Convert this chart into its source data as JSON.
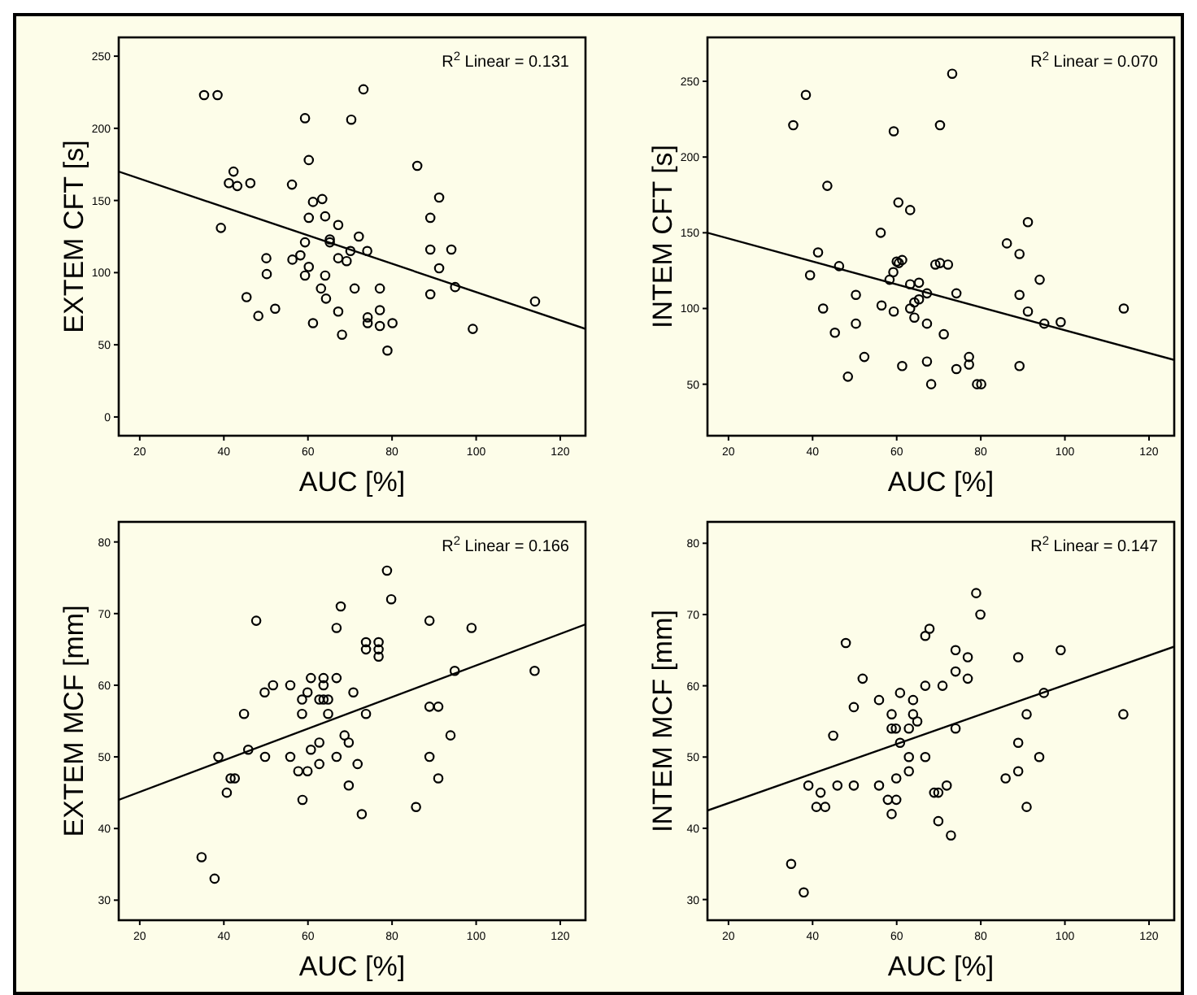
{
  "chart_data": [
    {
      "type": "scatter",
      "xlabel": "AUC [%]",
      "ylabel": "EXTEM CFT [s]",
      "xlim": [
        15,
        126
      ],
      "ylim": [
        -13,
        263
      ],
      "xticks": [
        20,
        40,
        60,
        80,
        100,
        120
      ],
      "yticks": [
        0,
        50,
        100,
        150,
        200,
        250
      ],
      "marker": "circle",
      "annotations": [
        "R$^{2}$ Linear = 0.131"
      ],
      "series": [
        {
          "color": "#000000",
          "x": [
            35.3,
            38.5,
            39.3,
            41.2,
            42.3,
            43.2,
            46.3,
            45.4,
            48.2,
            50.1,
            50.2,
            52.2,
            56.2,
            56.3,
            58.2,
            59.3,
            59.3,
            59.3,
            60.2,
            60.2,
            60.2,
            61.2,
            61.2,
            63.4,
            63.1,
            64.1,
            64.1,
            64.3,
            65.2,
            65.2,
            67.2,
            67.2,
            67.2,
            68.1,
            69.2,
            70.1,
            70.3,
            71.1,
            72.1,
            73.2,
            74.1,
            74.2,
            74.2,
            77.1,
            77.1,
            77.1,
            78.9,
            80.1,
            86.0,
            89.1,
            89.1,
            89.1,
            91.2,
            91.2,
            94.1,
            95.0,
            99.2,
            114.0
          ],
          "values": [
            223,
            223,
            131,
            162,
            170,
            160,
            162,
            83,
            70,
            110,
            99,
            75,
            161,
            109,
            112,
            121,
            98,
            207,
            178,
            138,
            104,
            65,
            149,
            151,
            89,
            139,
            98,
            82,
            123,
            121,
            133,
            110,
            73,
            57,
            108,
            115,
            206,
            89,
            125,
            227,
            115,
            69,
            65,
            89,
            74,
            63,
            46,
            65,
            174,
            138,
            116,
            85,
            152,
            103,
            116,
            90,
            61,
            80
          ]
        },
        {
          "type": "line",
          "color": "#000000",
          "marker": "none",
          "x": [
            15,
            126
          ],
          "values": [
            170,
            61
          ]
        }
      ]
    },
    {
      "type": "scatter",
      "xlabel": "AUC [%]",
      "ylabel": "INTEM CFT [s]",
      "xlim": [
        15,
        126
      ],
      "ylim": [
        16,
        279
      ],
      "xticks": [
        20,
        40,
        60,
        80,
        100,
        120
      ],
      "yticks": [
        50,
        100,
        150,
        200,
        250
      ],
      "marker": "circle",
      "annotations": [
        "R$^{2}$ Linear = 0.070"
      ],
      "series": [
        {
          "color": "#000000",
          "x": [
            35.4,
            38.4,
            39.4,
            41.3,
            42.5,
            43.5,
            45.3,
            46.3,
            48.4,
            50.3,
            50.3,
            52.3,
            56.2,
            56.4,
            58.3,
            59.2,
            59.3,
            59.3,
            60.0,
            60.4,
            60.5,
            61.3,
            61.3,
            63.2,
            63.2,
            63.2,
            64.2,
            64.2,
            65.3,
            65.3,
            67.2,
            67.2,
            67.2,
            68.2,
            69.2,
            70.3,
            70.3,
            71.2,
            72.2,
            73.2,
            74.2,
            74.2,
            77.2,
            77.2,
            79.1,
            80.1,
            86.2,
            89.2,
            89.2,
            89.2,
            91.2,
            91.2,
            94.0,
            95.1,
            99.0,
            114.0
          ],
          "values": [
            221,
            241,
            122,
            137,
            100,
            181,
            84,
            128,
            55,
            109,
            90,
            68,
            150,
            102,
            119,
            124,
            217,
            98,
            131,
            170,
            130,
            132,
            62,
            165,
            116,
            100,
            104,
            94,
            117,
            106,
            110,
            90,
            65,
            50,
            129,
            221,
            130,
            83,
            129,
            255,
            110,
            60,
            68,
            63,
            50,
            50,
            143,
            136,
            109,
            62,
            157,
            98,
            119,
            90,
            91,
            100
          ]
        },
        {
          "type": "line",
          "color": "#000000",
          "marker": "none",
          "x": [
            15,
            126
          ],
          "values": [
            150,
            66
          ]
        }
      ]
    },
    {
      "type": "scatter",
      "xlabel": "AUC [%]",
      "ylabel": "EXTEM MCF [mm]",
      "xlim": [
        15,
        126
      ],
      "ylim": [
        27.2,
        82.8
      ],
      "xticks": [
        20,
        40,
        60,
        80,
        100,
        120
      ],
      "yticks": [
        30,
        40,
        50,
        60,
        70,
        80
      ],
      "marker": "circle",
      "annotations": [
        "R$^{2}$ Linear = 0.166"
      ],
      "series": [
        {
          "color": "#000000",
          "x": [
            34.7,
            37.8,
            38.7,
            40.7,
            41.6,
            42.6,
            44.8,
            45.8,
            47.7,
            49.7,
            49.8,
            51.7,
            55.8,
            55.8,
            57.7,
            58.6,
            58.6,
            58.7,
            59.9,
            59.9,
            60.7,
            60.7,
            62.7,
            62.7,
            62.7,
            63.7,
            63.7,
            63.7,
            64.8,
            64.8,
            66.8,
            66.8,
            66.8,
            67.8,
            68.7,
            69.7,
            69.7,
            70.8,
            71.8,
            72.8,
            73.8,
            73.8,
            73.8,
            76.8,
            76.8,
            76.8,
            78.8,
            79.8,
            85.7,
            88.9,
            88.9,
            88.9,
            91.0,
            91.0,
            93.9,
            94.9,
            98.9,
            113.9
          ],
          "values": [
            36,
            33,
            50,
            45,
            47,
            47,
            56,
            51,
            69,
            59,
            50,
            60,
            60,
            50,
            48,
            58,
            56,
            44,
            59,
            48,
            61,
            51,
            58,
            49,
            52,
            61,
            60,
            58,
            58,
            56,
            68,
            61,
            50,
            71,
            53,
            52,
            46,
            59,
            49,
            42,
            56,
            66,
            65,
            66,
            65,
            64,
            76,
            72,
            43,
            69,
            57,
            50,
            57,
            47,
            53,
            62,
            68,
            62
          ]
        },
        {
          "type": "line",
          "color": "#000000",
          "marker": "none",
          "x": [
            15,
            126
          ],
          "values": [
            44,
            68.5
          ]
        }
      ]
    },
    {
      "type": "scatter",
      "xlabel": "AUC [%]",
      "ylabel": "INTEM MCF [mm]",
      "xlim": [
        15,
        126
      ],
      "ylim": [
        27.1,
        83
      ],
      "xticks": [
        20,
        40,
        60,
        80,
        100,
        120
      ],
      "yticks": [
        30,
        40,
        50,
        60,
        70,
        80
      ],
      "marker": "circle",
      "annotations": [
        "R$^{2}$ Linear = 0.147"
      ],
      "series": [
        {
          "color": "#000000",
          "x": [
            34.9,
            37.9,
            39.0,
            40.9,
            41.9,
            43.0,
            44.9,
            45.9,
            47.9,
            49.8,
            49.8,
            51.9,
            55.8,
            55.8,
            57.9,
            58.8,
            58.8,
            58.8,
            59.8,
            59.9,
            59.9,
            60.8,
            60.8,
            62.9,
            62.9,
            62.9,
            63.9,
            63.9,
            64.9,
            66.8,
            66.8,
            66.8,
            67.8,
            68.9,
            69.9,
            69.9,
            70.9,
            71.9,
            72.9,
            74.0,
            74.0,
            74.0,
            76.9,
            76.9,
            78.9,
            79.9,
            85.9,
            88.9,
            88.9,
            88.9,
            90.9,
            90.9,
            93.9,
            95.0,
            99.0,
            113.9
          ],
          "values": [
            35,
            31,
            46,
            43,
            45,
            43,
            53,
            46,
            66,
            57,
            46,
            61,
            58,
            46,
            44,
            56,
            54,
            42,
            54,
            44,
            47,
            59,
            52,
            54,
            50,
            48,
            58,
            56,
            55,
            67,
            60,
            50,
            68,
            45,
            45,
            41,
            60,
            46,
            39,
            65,
            62,
            54,
            64,
            61,
            73,
            70,
            47,
            64,
            52,
            48,
            56,
            43,
            50,
            59,
            65,
            56
          ]
        },
        {
          "type": "line",
          "color": "#000000",
          "marker": "none",
          "x": [
            15,
            126
          ],
          "values": [
            42.5,
            65.5
          ]
        }
      ]
    }
  ]
}
